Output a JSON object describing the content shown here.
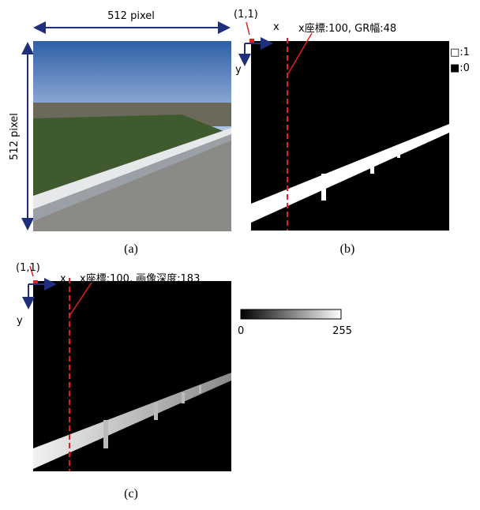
{
  "panel_a": {
    "width_label": "512 pixel",
    "height_label": "512 pixel",
    "caption": "(a)"
  },
  "panel_b": {
    "origin": "(1,1)",
    "x_axis": "x",
    "y_axis": "y",
    "annotation": "x座標:100, GR幅:48",
    "legend": [
      "□:1",
      "■:0"
    ],
    "caption": "(b)"
  },
  "panel_c": {
    "origin": "(1,1)",
    "x_axis": "x",
    "y_axis": "y",
    "annotation": "x座標:100, 画像深度:183",
    "colorbar": {
      "min_label": "0",
      "max_label": "255"
    },
    "caption": "(c)"
  }
}
